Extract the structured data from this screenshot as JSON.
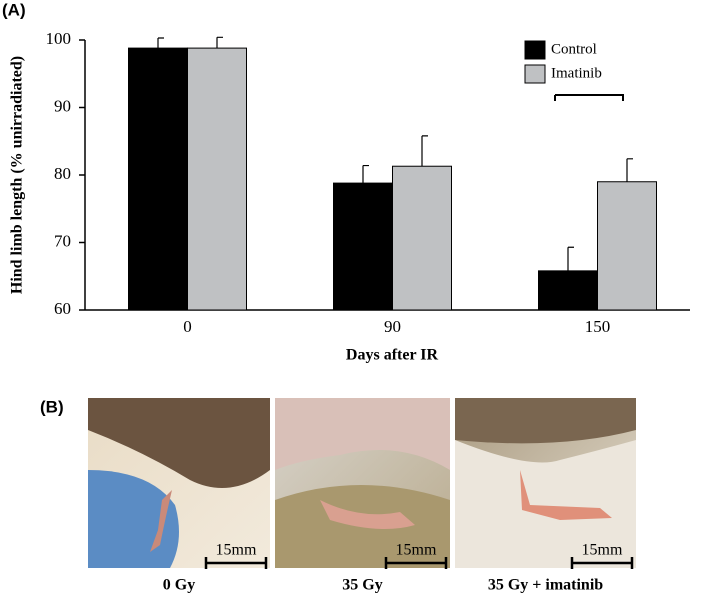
{
  "chart_data": {
    "type": "bar",
    "ylabel": "Hind limb length (% unirradiated)",
    "xlabel": "Days after IR",
    "categories": [
      "0",
      "90",
      "150"
    ],
    "series": [
      {
        "name": "Control",
        "color": "#000000",
        "values": [
          98.8,
          78.8,
          65.8
        ],
        "errors": [
          1.5,
          2.6,
          3.5
        ]
      },
      {
        "name": "Imatinib",
        "color": "#bfc1c3",
        "values": [
          98.8,
          81.3,
          79.0
        ],
        "errors": [
          1.6,
          4.5,
          3.4
        ]
      }
    ],
    "ylim": [
      60,
      100
    ],
    "yticks": [
      60,
      70,
      80,
      90,
      100
    ],
    "legend": "upper right"
  },
  "panel_labels": [
    "(A)",
    "(B)"
  ],
  "photos": [
    {
      "scale": "15mm",
      "caption": "0 Gy"
    },
    {
      "scale": "15mm",
      "caption": "35 Gy"
    },
    {
      "scale": "15mm",
      "caption": "35 Gy + imatinib"
    }
  ]
}
